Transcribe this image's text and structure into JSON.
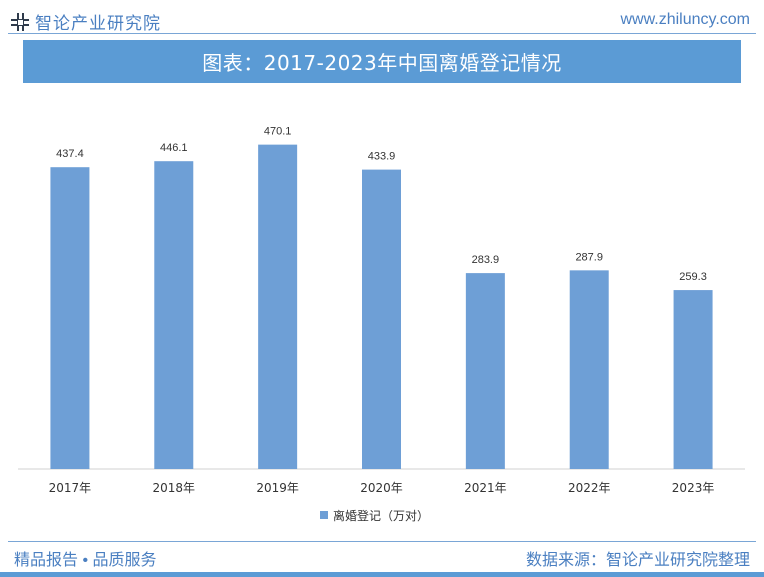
{
  "header": {
    "brand_name": "智论产业研究院",
    "site_url": "www.zhiluncy.com",
    "logo_icon": "zhilun-logo-icon"
  },
  "banner": {
    "title": "图表：2017-2023年中国离婚登记情况"
  },
  "chart_data": {
    "type": "bar",
    "categories": [
      "2017年",
      "2018年",
      "2019年",
      "2020年",
      "2021年",
      "2022年",
      "2023年"
    ],
    "series": [
      {
        "name": "离婚登记（万对）",
        "values": [
          437.4,
          446.1,
          470.1,
          433.9,
          283.9,
          287.9,
          259.3
        ]
      }
    ],
    "value_labels": [
      "437.4",
      "446.1",
      "470.1",
      "433.9",
      "283.9",
      "287.9",
      "259.3"
    ],
    "title": "",
    "xlabel": "",
    "ylabel": "",
    "ylim": [
      0,
      500
    ],
    "grid": false,
    "legend_position": "bottom",
    "bar_color": "#6e9fd6"
  },
  "footer": {
    "left": "精品报告 • 品质服务",
    "right": "数据来源：智论产业研究院整理"
  },
  "colors": {
    "accent": "#5b9bd5",
    "text_blue": "#4a7fc1"
  }
}
